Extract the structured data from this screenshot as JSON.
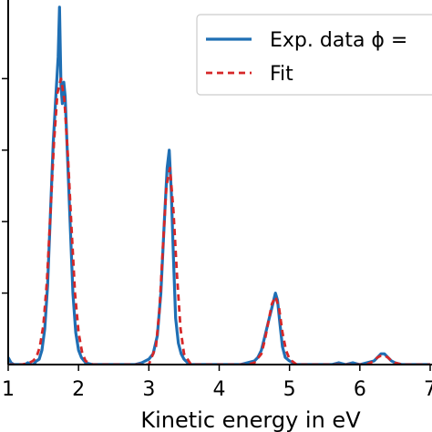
{
  "chart_data": {
    "type": "line",
    "xlabel": "Kinetic energy in eV",
    "xlim": [
      1,
      7
    ],
    "ylim": [
      0,
      1.02
    ],
    "x_ticks": [
      1,
      2,
      3,
      4,
      5,
      6,
      7
    ],
    "y_ticks": [
      0.2,
      0.4,
      0.6,
      0.8
    ],
    "grid": false,
    "legend_position": "top-right",
    "series": [
      {
        "name": "Exp. data ϕ =",
        "style": "solid",
        "color": "#1f6fb4",
        "x": [
          1.0,
          1.04,
          1.08,
          1.12,
          1.16,
          1.2,
          1.24,
          1.28,
          1.32,
          1.36,
          1.4,
          1.44,
          1.48,
          1.52,
          1.56,
          1.6,
          1.64,
          1.68,
          1.71,
          1.73,
          1.75,
          1.77,
          1.79,
          1.81,
          1.84,
          1.88,
          1.92,
          1.96,
          2.0,
          2.04,
          2.1,
          2.2,
          2.3,
          2.4,
          2.5,
          2.6,
          2.7,
          2.8,
          2.9,
          3.0,
          3.06,
          3.12,
          3.17,
          3.22,
          3.26,
          3.29,
          3.32,
          3.35,
          3.38,
          3.42,
          3.46,
          3.5,
          3.55,
          3.6,
          3.7,
          3.8,
          3.9,
          4.0,
          4.1,
          4.2,
          4.3,
          4.4,
          4.5,
          4.55,
          4.6,
          4.65,
          4.7,
          4.75,
          4.8,
          4.83,
          4.86,
          4.9,
          4.94,
          5.0,
          5.1,
          5.2,
          5.3,
          5.4,
          5.5,
          5.6,
          5.7,
          5.8,
          5.9,
          6.0,
          6.1,
          6.2,
          6.25,
          6.3,
          6.35,
          6.4,
          6.45,
          6.5,
          6.6,
          6.7,
          6.8,
          6.9,
          7.0
        ],
        "y": [
          0.02,
          0.005,
          0.0,
          0.0,
          0.0,
          0.0,
          0.0,
          0.005,
          0.0,
          0.0,
          0.01,
          0.015,
          0.04,
          0.1,
          0.22,
          0.42,
          0.62,
          0.76,
          0.86,
          1.0,
          0.78,
          0.73,
          0.79,
          0.75,
          0.6,
          0.4,
          0.2,
          0.09,
          0.04,
          0.02,
          0.005,
          0.0,
          0.0,
          0.0,
          0.0,
          0.0,
          0.0,
          0.0,
          0.005,
          0.015,
          0.03,
          0.08,
          0.2,
          0.4,
          0.55,
          0.6,
          0.48,
          0.3,
          0.13,
          0.06,
          0.03,
          0.015,
          0.005,
          0.0,
          0.0,
          0.0,
          0.0,
          0.0,
          0.0,
          0.0,
          0.0,
          0.005,
          0.01,
          0.02,
          0.04,
          0.08,
          0.12,
          0.16,
          0.2,
          0.18,
          0.12,
          0.05,
          0.02,
          0.01,
          0.0,
          0.0,
          0.0,
          0.0,
          0.0,
          0.0,
          0.005,
          0.0,
          0.005,
          0.0,
          0.005,
          0.01,
          0.02,
          0.03,
          0.03,
          0.02,
          0.01,
          0.005,
          0.0,
          0.0,
          0.0,
          0.0,
          0.0
        ]
      },
      {
        "name": "Fit",
        "style": "dashed",
        "color": "#d62728",
        "x": [
          1.0,
          1.1,
          1.2,
          1.3,
          1.35,
          1.4,
          1.45,
          1.5,
          1.55,
          1.6,
          1.65,
          1.7,
          1.75,
          1.8,
          1.85,
          1.9,
          1.95,
          2.0,
          2.05,
          2.1,
          2.2,
          2.4,
          2.6,
          2.8,
          3.0,
          3.1,
          3.15,
          3.2,
          3.25,
          3.3,
          3.35,
          3.4,
          3.45,
          3.5,
          3.6,
          3.8,
          4.0,
          4.2,
          4.4,
          4.5,
          4.6,
          4.65,
          4.7,
          4.75,
          4.8,
          4.85,
          4.9,
          4.95,
          5.0,
          5.1,
          5.3,
          5.5,
          5.7,
          5.9,
          6.1,
          6.2,
          6.25,
          6.3,
          6.35,
          6.4,
          6.45,
          6.5,
          6.6,
          6.8,
          7.0
        ],
        "y": [
          0.0,
          0.0,
          0.0,
          0.005,
          0.01,
          0.02,
          0.05,
          0.11,
          0.23,
          0.42,
          0.62,
          0.76,
          0.8,
          0.74,
          0.58,
          0.38,
          0.2,
          0.09,
          0.035,
          0.01,
          0.0,
          0.0,
          0.0,
          0.0,
          0.0,
          0.05,
          0.15,
          0.33,
          0.5,
          0.55,
          0.43,
          0.25,
          0.1,
          0.03,
          0.0,
          0.0,
          0.0,
          0.0,
          0.0,
          0.005,
          0.03,
          0.07,
          0.12,
          0.17,
          0.19,
          0.16,
          0.09,
          0.04,
          0.015,
          0.0,
          0.0,
          0.0,
          0.0,
          0.0,
          0.0,
          0.01,
          0.02,
          0.025,
          0.025,
          0.02,
          0.01,
          0.005,
          0.0,
          0.0,
          0.0
        ]
      }
    ]
  }
}
